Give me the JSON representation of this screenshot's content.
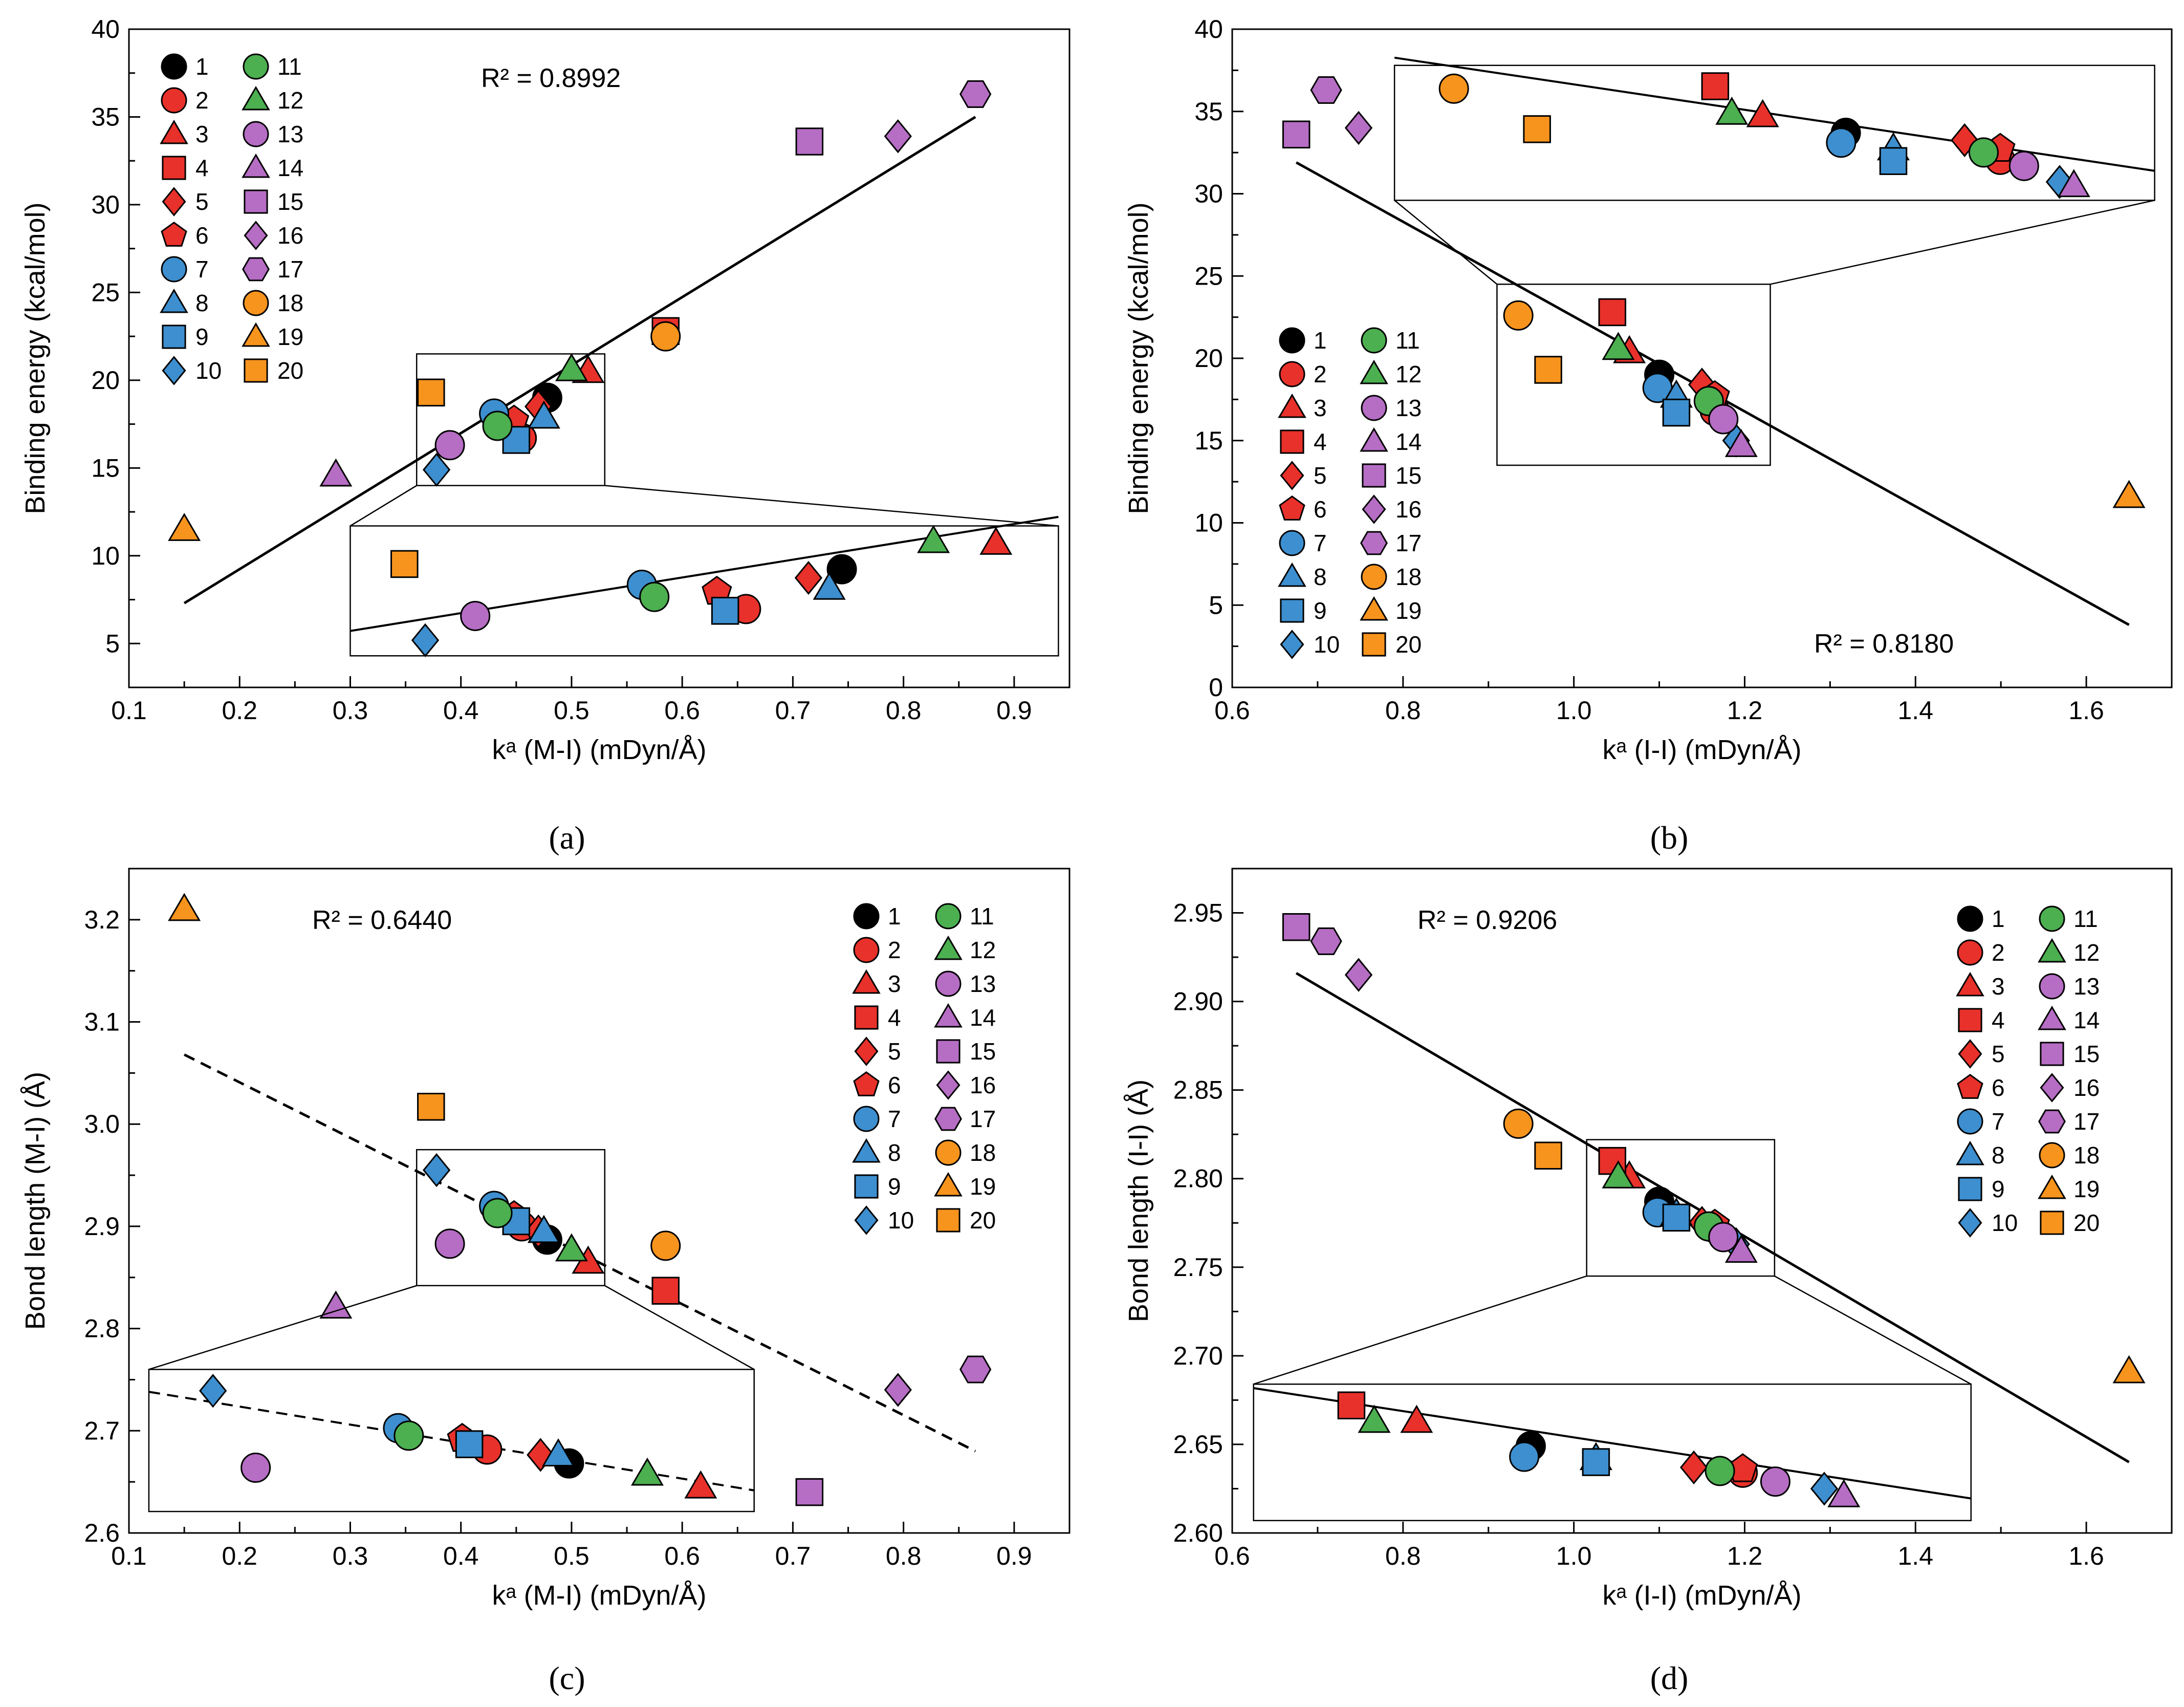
{
  "figure": {
    "captions": [
      "(a)",
      "(b)",
      "(c)",
      "(d)"
    ]
  },
  "series_styles": {
    "1": {
      "marker": "circle",
      "color": "#000000"
    },
    "2": {
      "marker": "circle",
      "color": "#e8312a"
    },
    "3": {
      "marker": "triangle",
      "color": "#e8312a"
    },
    "4": {
      "marker": "square",
      "color": "#e8312a"
    },
    "5": {
      "marker": "diamond",
      "color": "#e8312a"
    },
    "6": {
      "marker": "pentagon",
      "color": "#e8312a"
    },
    "7": {
      "marker": "circle",
      "color": "#3d8fcf"
    },
    "8": {
      "marker": "triangle",
      "color": "#3d8fcf"
    },
    "9": {
      "marker": "square",
      "color": "#3d8fcf"
    },
    "10": {
      "marker": "diamond",
      "color": "#3d8fcf"
    },
    "11": {
      "marker": "circle",
      "color": "#4caf50"
    },
    "12": {
      "marker": "triangle",
      "color": "#4caf50"
    },
    "13": {
      "marker": "circle",
      "color": "#b66dc4"
    },
    "14": {
      "marker": "triangle",
      "color": "#b66dc4"
    },
    "15": {
      "marker": "square",
      "color": "#b66dc4"
    },
    "16": {
      "marker": "diamond",
      "color": "#b66dc4"
    },
    "17": {
      "marker": "hexagon",
      "color": "#b66dc4"
    },
    "18": {
      "marker": "circle",
      "color": "#f7941d"
    },
    "19": {
      "marker": "triangle",
      "color": "#f7941d"
    },
    "20": {
      "marker": "square",
      "color": "#f7941d"
    }
  },
  "chart_data": [
    {
      "id": "a",
      "type": "scatter",
      "caption": "(a)",
      "xlabel": "kᵃ (M-I) (mDyn/Å)",
      "ylabel": "Binding energy (kcal/mol)",
      "xlim": [
        0.1,
        0.95
      ],
      "ylim": [
        2.5,
        40
      ],
      "xticks": [
        0.1,
        0.2,
        0.3,
        0.4,
        0.5,
        0.6,
        0.7,
        0.8,
        0.9
      ],
      "yticks": [
        5,
        10,
        15,
        20,
        25,
        30,
        35,
        40
      ],
      "xdecimals": 1,
      "ydecimals": 0,
      "r2_label": "R² = 0.8992",
      "fit": {
        "style": "solid",
        "x": [
          0.15,
          0.865
        ],
        "y": [
          7.3,
          35.0
        ]
      },
      "legend_position": "top-left",
      "legend_labels": [
        "1",
        "2",
        "3",
        "4",
        "5",
        "6",
        "7",
        "8",
        "9",
        "10",
        "11",
        "12",
        "13",
        "14",
        "15",
        "16",
        "17",
        "18",
        "19",
        "20"
      ],
      "points": [
        {
          "id": "1",
          "x": 0.478,
          "y": 19.0
        },
        {
          "id": "2",
          "x": 0.455,
          "y": 16.7
        },
        {
          "id": "3",
          "x": 0.515,
          "y": 20.5
        },
        {
          "id": "4",
          "x": 0.585,
          "y": 22.8
        },
        {
          "id": "5",
          "x": 0.47,
          "y": 18.5
        },
        {
          "id": "6",
          "x": 0.448,
          "y": 17.7
        },
        {
          "id": "7",
          "x": 0.43,
          "y": 18.1
        },
        {
          "id": "8",
          "x": 0.475,
          "y": 17.9
        },
        {
          "id": "9",
          "x": 0.45,
          "y": 16.6
        },
        {
          "id": "10",
          "x": 0.378,
          "y": 14.9
        },
        {
          "id": "11",
          "x": 0.433,
          "y": 17.4
        },
        {
          "id": "12",
          "x": 0.5,
          "y": 20.6
        },
        {
          "id": "13",
          "x": 0.39,
          "y": 16.3
        },
        {
          "id": "14",
          "x": 0.287,
          "y": 14.6
        },
        {
          "id": "15",
          "x": 0.715,
          "y": 33.6
        },
        {
          "id": "16",
          "x": 0.795,
          "y": 33.9
        },
        {
          "id": "17",
          "x": 0.865,
          "y": 36.3
        },
        {
          "id": "18",
          "x": 0.585,
          "y": 22.5
        },
        {
          "id": "19",
          "x": 0.15,
          "y": 11.5
        },
        {
          "id": "20",
          "x": 0.373,
          "y": 19.3
        }
      ],
      "zoom": {
        "src": {
          "x": [
            0.36,
            0.53
          ],
          "y": [
            14.0,
            21.5
          ]
        },
        "dst": {
          "x": [
            0.3,
            0.94
          ],
          "y": [
            4.3,
            11.7
          ]
        },
        "fit_style": "solid"
      }
    },
    {
      "id": "b",
      "type": "scatter",
      "caption": "(b)",
      "xlabel": "kᵃ (I-I) (mDyn/Å)",
      "ylabel": "Binding energy (kcal/mol)",
      "xlim": [
        0.6,
        1.7
      ],
      "ylim": [
        0,
        40
      ],
      "xticks": [
        0.6,
        0.8,
        1.0,
        1.2,
        1.4,
        1.6
      ],
      "yticks": [
        0,
        5,
        10,
        15,
        20,
        25,
        30,
        35,
        40
      ],
      "xdecimals": 1,
      "ydecimals": 0,
      "r2_label": "R² = 0.8180",
      "fit": {
        "style": "solid",
        "x": [
          0.675,
          1.65
        ],
        "y": [
          31.9,
          3.8
        ]
      },
      "legend_position": "center-left",
      "legend_labels": [
        "1",
        "2",
        "3",
        "4",
        "5",
        "6",
        "7",
        "8",
        "9",
        "10",
        "11",
        "12",
        "13",
        "14",
        "15",
        "16",
        "17",
        "18",
        "19",
        "20"
      ],
      "points": [
        {
          "id": "1",
          "x": 1.1,
          "y": 19.0
        },
        {
          "id": "2",
          "x": 1.165,
          "y": 16.8
        },
        {
          "id": "3",
          "x": 1.065,
          "y": 20.4
        },
        {
          "id": "4",
          "x": 1.045,
          "y": 22.8
        },
        {
          "id": "5",
          "x": 1.15,
          "y": 18.4
        },
        {
          "id": "6",
          "x": 1.165,
          "y": 17.7
        },
        {
          "id": "7",
          "x": 1.098,
          "y": 18.2
        },
        {
          "id": "8",
          "x": 1.12,
          "y": 17.7
        },
        {
          "id": "9",
          "x": 1.12,
          "y": 16.7
        },
        {
          "id": "10",
          "x": 1.19,
          "y": 15.0
        },
        {
          "id": "11",
          "x": 1.158,
          "y": 17.4
        },
        {
          "id": "12",
          "x": 1.052,
          "y": 20.6
        },
        {
          "id": "13",
          "x": 1.175,
          "y": 16.3
        },
        {
          "id": "14",
          "x": 1.196,
          "y": 14.7
        },
        {
          "id": "15",
          "x": 0.675,
          "y": 33.6
        },
        {
          "id": "16",
          "x": 0.748,
          "y": 34.0
        },
        {
          "id": "17",
          "x": 0.71,
          "y": 36.3
        },
        {
          "id": "18",
          "x": 0.935,
          "y": 22.6
        },
        {
          "id": "19",
          "x": 1.65,
          "y": 11.6
        },
        {
          "id": "20",
          "x": 0.97,
          "y": 19.3
        }
      ],
      "zoom": {
        "src": {
          "x": [
            0.91,
            1.23
          ],
          "y": [
            13.5,
            24.5
          ]
        },
        "dst": {
          "x": [
            0.79,
            1.68
          ],
          "y": [
            29.6,
            37.8
          ]
        },
        "fit_style": "solid"
      }
    },
    {
      "id": "c",
      "type": "scatter",
      "caption": "(c)",
      "xlabel": "kᵃ (M-I) (mDyn/Å)",
      "ylabel": "Bond length (M-I) (Å)",
      "xlim": [
        0.1,
        0.95
      ],
      "ylim": [
        2.6,
        3.25
      ],
      "xticks": [
        0.1,
        0.2,
        0.3,
        0.4,
        0.5,
        0.6,
        0.7,
        0.8,
        0.9
      ],
      "yticks": [
        2.6,
        2.7,
        2.8,
        2.9,
        3.0,
        3.1,
        3.2
      ],
      "xdecimals": 1,
      "ydecimals": 1,
      "r2_label": "R² = 0.6440",
      "fit": {
        "style": "dashed",
        "x": [
          0.15,
          0.865
        ],
        "y": [
          3.068,
          2.68
        ]
      },
      "legend_position": "top-right",
      "legend_labels": [
        "1",
        "2",
        "3",
        "4",
        "5",
        "6",
        "7",
        "8",
        "9",
        "10",
        "11",
        "12",
        "13",
        "14",
        "15",
        "16",
        "17",
        "18",
        "19",
        "20"
      ],
      "points": [
        {
          "id": "1",
          "x": 0.478,
          "y": 2.887
        },
        {
          "id": "2",
          "x": 0.455,
          "y": 2.9
        },
        {
          "id": "3",
          "x": 0.515,
          "y": 2.865
        },
        {
          "id": "4",
          "x": 0.585,
          "y": 2.837
        },
        {
          "id": "5",
          "x": 0.47,
          "y": 2.895
        },
        {
          "id": "6",
          "x": 0.448,
          "y": 2.91
        },
        {
          "id": "7",
          "x": 0.43,
          "y": 2.92
        },
        {
          "id": "8",
          "x": 0.475,
          "y": 2.895
        },
        {
          "id": "9",
          "x": 0.45,
          "y": 2.905
        },
        {
          "id": "10",
          "x": 0.378,
          "y": 2.955
        },
        {
          "id": "11",
          "x": 0.433,
          "y": 2.913
        },
        {
          "id": "12",
          "x": 0.5,
          "y": 2.877
        },
        {
          "id": "13",
          "x": 0.39,
          "y": 2.883
        },
        {
          "id": "14",
          "x": 0.287,
          "y": 2.821
        },
        {
          "id": "15",
          "x": 0.715,
          "y": 2.64
        },
        {
          "id": "16",
          "x": 0.795,
          "y": 2.74
        },
        {
          "id": "17",
          "x": 0.865,
          "y": 2.76
        },
        {
          "id": "18",
          "x": 0.585,
          "y": 2.881
        },
        {
          "id": "19",
          "x": 0.15,
          "y": 3.21
        },
        {
          "id": "20",
          "x": 0.373,
          "y": 3.017
        }
      ],
      "zoom": {
        "src": {
          "x": [
            0.36,
            0.53
          ],
          "y": [
            2.842,
            2.975
          ]
        },
        "dst": {
          "x": [
            0.118,
            0.665
          ],
          "y": [
            2.621,
            2.76
          ]
        },
        "fit_style": "dashed"
      }
    },
    {
      "id": "d",
      "type": "scatter",
      "caption": "(d)",
      "xlabel": "kᵃ (I-I) (mDyn/Å)",
      "ylabel": "Bond length (I-I) (Å)",
      "xlim": [
        0.6,
        1.7
      ],
      "ylim": [
        2.6,
        2.975
      ],
      "xticks": [
        0.6,
        0.8,
        1.0,
        1.2,
        1.4,
        1.6
      ],
      "yticks": [
        2.6,
        2.65,
        2.7,
        2.75,
        2.8,
        2.85,
        2.9,
        2.95
      ],
      "xdecimals": 1,
      "ydecimals": 2,
      "r2_label": "R² = 0.9206",
      "fit": {
        "style": "solid",
        "x": [
          0.675,
          1.65
        ],
        "y": [
          2.916,
          2.64
        ]
      },
      "legend_position": "top-right",
      "legend_labels": [
        "1",
        "2",
        "3",
        "4",
        "5",
        "6",
        "7",
        "8",
        "9",
        "10",
        "11",
        "12",
        "13",
        "14",
        "15",
        "16",
        "17",
        "18",
        "19",
        "20"
      ],
      "points": [
        {
          "id": "1",
          "x": 1.1,
          "y": 2.787
        },
        {
          "id": "2",
          "x": 1.165,
          "y": 2.772
        },
        {
          "id": "3",
          "x": 1.065,
          "y": 2.801
        },
        {
          "id": "4",
          "x": 1.045,
          "y": 2.81
        },
        {
          "id": "5",
          "x": 1.15,
          "y": 2.775
        },
        {
          "id": "6",
          "x": 1.165,
          "y": 2.774
        },
        {
          "id": "7",
          "x": 1.098,
          "y": 2.781
        },
        {
          "id": "8",
          "x": 1.12,
          "y": 2.78
        },
        {
          "id": "9",
          "x": 1.12,
          "y": 2.778
        },
        {
          "id": "10",
          "x": 1.19,
          "y": 2.763
        },
        {
          "id": "11",
          "x": 1.158,
          "y": 2.773
        },
        {
          "id": "12",
          "x": 1.052,
          "y": 2.801
        },
        {
          "id": "13",
          "x": 1.175,
          "y": 2.767
        },
        {
          "id": "14",
          "x": 1.196,
          "y": 2.759
        },
        {
          "id": "15",
          "x": 0.675,
          "y": 2.942
        },
        {
          "id": "16",
          "x": 0.748,
          "y": 2.915
        },
        {
          "id": "17",
          "x": 0.71,
          "y": 2.934
        },
        {
          "id": "18",
          "x": 0.935,
          "y": 2.831
        },
        {
          "id": "19",
          "x": 1.65,
          "y": 2.691
        },
        {
          "id": "20",
          "x": 0.97,
          "y": 2.813
        }
      ],
      "zoom": {
        "src": {
          "x": [
            1.015,
            1.235
          ],
          "y": [
            2.745,
            2.822
          ]
        },
        "dst": {
          "x": [
            0.625,
            1.465
          ],
          "y": [
            2.607,
            2.684
          ]
        },
        "fit_style": "solid"
      }
    }
  ]
}
